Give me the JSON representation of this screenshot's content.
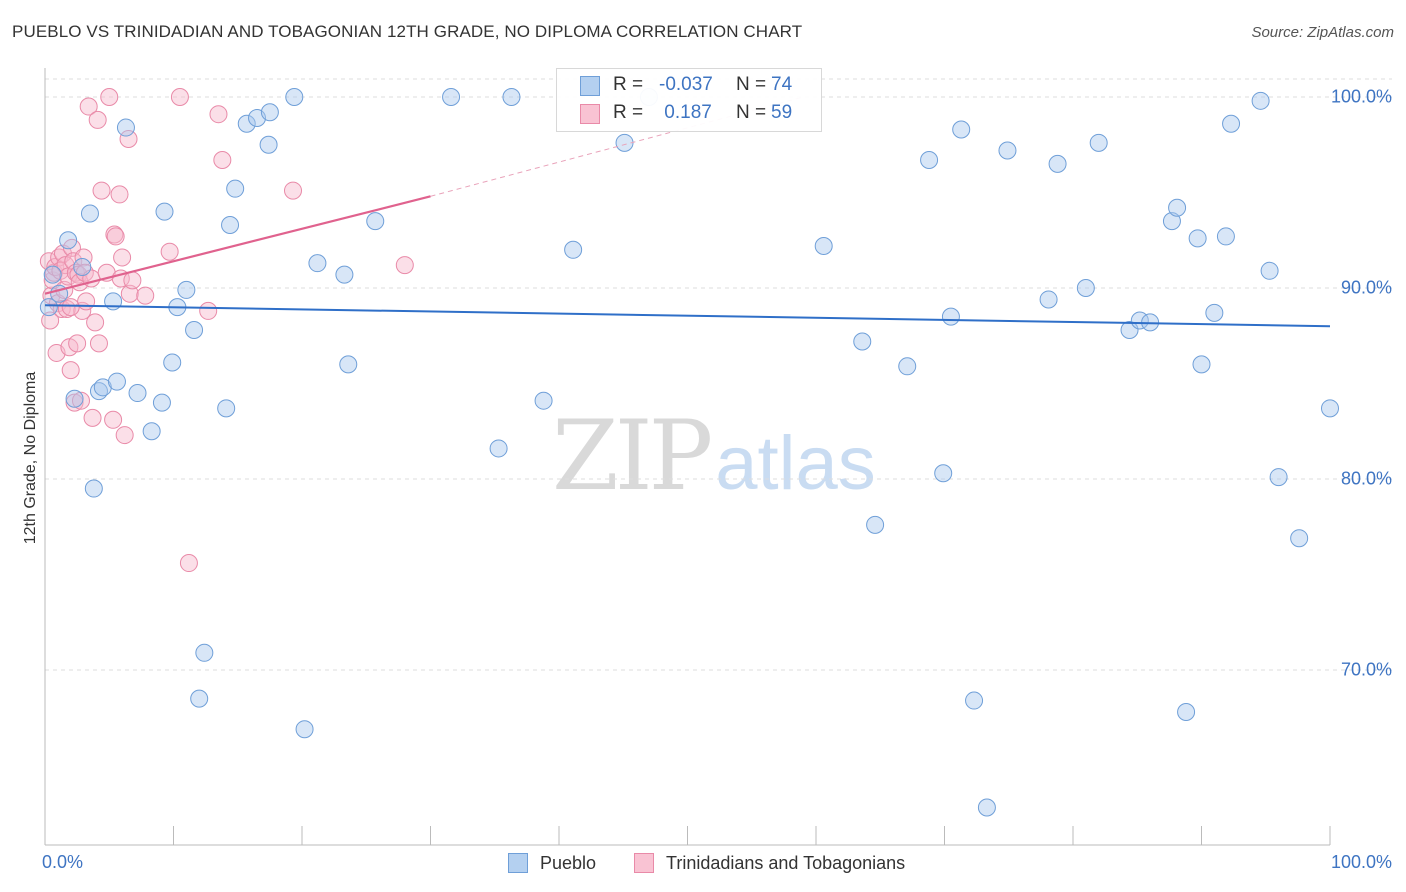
{
  "header": {
    "title": "PUEBLO VS TRINIDADIAN AND TOBAGONIAN 12TH GRADE, NO DIPLOMA CORRELATION CHART",
    "source": "Source: ZipAtlas.com"
  },
  "stats": {
    "pueblo": {
      "r_label": "R =",
      "r_value": "-0.037",
      "n_label": "N =",
      "n_value": "74"
    },
    "trinidad": {
      "r_label": "R =",
      "r_value": " 0.187",
      "n_label": "N =",
      "n_value": "59"
    }
  },
  "legend": {
    "pueblo_label": "Pueblo",
    "trinidad_label": "Trinidadians and Tobagonians"
  },
  "watermark": {
    "zip": "ZIP",
    "atlas": "atlas"
  },
  "colors": {
    "blue_fill": "#a8c8ee",
    "blue_stroke": "#6f9fd8",
    "blue_line": "#2f6fc8",
    "pink_fill": "#f7b9cc",
    "pink_stroke": "#e98aa8",
    "pink_line": "#e0628e",
    "grid": "#dddddd",
    "accent_text": "#3e74c2"
  },
  "chart_data": {
    "type": "scatter",
    "title": "PUEBLO VS TRINIDADIAN AND TOBAGONIAN 12TH GRADE, NO DIPLOMA CORRELATION CHART",
    "xlabel": "",
    "ylabel": "12th Grade, No Diploma",
    "xlim": [
      0,
      100
    ],
    "ylim": [
      60,
      102
    ],
    "x_tick_labels": [
      "0.0%",
      "100.0%"
    ],
    "y_ticks": [
      70,
      80,
      90,
      100
    ],
    "y_tick_labels": [
      "70.0%",
      "80.0%",
      "90.0%",
      "100.0%"
    ],
    "grid": true,
    "legend_position": "bottom",
    "series": [
      {
        "name": "Pueblo",
        "color": "#a8c8ee",
        "r": -0.037,
        "n": 74,
        "trend": {
          "x": [
            0,
            100
          ],
          "y": [
            89.1,
            88.0
          ]
        },
        "points": [
          [
            0.3,
            89.0
          ],
          [
            0.6,
            90.7
          ],
          [
            1.1,
            89.7
          ],
          [
            1.8,
            92.5
          ],
          [
            2.3,
            84.2
          ],
          [
            2.9,
            91.1
          ],
          [
            3.5,
            93.9
          ],
          [
            3.8,
            79.5
          ],
          [
            4.2,
            84.6
          ],
          [
            4.5,
            84.8
          ],
          [
            5.3,
            89.3
          ],
          [
            5.6,
            85.1
          ],
          [
            6.3,
            98.4
          ],
          [
            7.2,
            84.5
          ],
          [
            8.3,
            82.5
          ],
          [
            9.1,
            84.0
          ],
          [
            9.3,
            94.0
          ],
          [
            9.9,
            86.1
          ],
          [
            10.3,
            89.0
          ],
          [
            11.0,
            89.9
          ],
          [
            11.6,
            87.8
          ],
          [
            12.4,
            70.9
          ],
          [
            12.0,
            68.5
          ],
          [
            14.1,
            83.7
          ],
          [
            14.4,
            93.3
          ],
          [
            14.8,
            95.2
          ],
          [
            15.7,
            98.6
          ],
          [
            16.5,
            98.9
          ],
          [
            17.4,
            97.5
          ],
          [
            17.5,
            99.2
          ],
          [
            19.4,
            100.0
          ],
          [
            20.2,
            66.9
          ],
          [
            21.2,
            91.3
          ],
          [
            23.3,
            90.7
          ],
          [
            23.6,
            86.0
          ],
          [
            25.7,
            93.5
          ],
          [
            31.6,
            100.0
          ],
          [
            35.3,
            81.6
          ],
          [
            36.3,
            100.0
          ],
          [
            38.8,
            84.1
          ],
          [
            41.1,
            92.0
          ],
          [
            45.1,
            97.6
          ],
          [
            47.0,
            100.0
          ],
          [
            60.6,
            92.2
          ],
          [
            63.6,
            87.2
          ],
          [
            64.6,
            77.6
          ],
          [
            67.1,
            85.9
          ],
          [
            68.8,
            96.7
          ],
          [
            69.9,
            80.3
          ],
          [
            73.3,
            62.8
          ],
          [
            70.5,
            88.5
          ],
          [
            71.3,
            98.3
          ],
          [
            72.3,
            68.4
          ],
          [
            74.9,
            97.2
          ],
          [
            78.1,
            89.4
          ],
          [
            78.8,
            96.5
          ],
          [
            81.0,
            90.0
          ],
          [
            82.0,
            97.6
          ],
          [
            84.4,
            87.8
          ],
          [
            85.2,
            88.3
          ],
          [
            86.0,
            88.2
          ],
          [
            87.7,
            93.5
          ],
          [
            88.1,
            94.2
          ],
          [
            88.8,
            67.8
          ],
          [
            89.7,
            92.6
          ],
          [
            90.0,
            86.0
          ],
          [
            91.0,
            88.7
          ],
          [
            91.9,
            92.7
          ],
          [
            92.3,
            98.6
          ],
          [
            94.6,
            99.8
          ],
          [
            95.3,
            90.9
          ],
          [
            96.0,
            80.1
          ],
          [
            97.6,
            76.9
          ],
          [
            100.0,
            83.7
          ]
        ]
      },
      {
        "name": "Trinidadians and Tobagonians",
        "color": "#f7b9cc",
        "r": 0.187,
        "n": 59,
        "trend": {
          "x": [
            0,
            30
          ],
          "y": [
            89.7,
            94.8
          ]
        },
        "trend_dashed": {
          "x": [
            30,
            59
          ],
          "y": [
            94.8,
            100.0
          ]
        },
        "points": [
          [
            0.3,
            91.4
          ],
          [
            0.4,
            88.3
          ],
          [
            0.5,
            89.6
          ],
          [
            0.6,
            90.4
          ],
          [
            0.7,
            90.8
          ],
          [
            0.8,
            91.1
          ],
          [
            0.9,
            86.6
          ],
          [
            1.0,
            89.2
          ],
          [
            1.1,
            91.6
          ],
          [
            1.2,
            90.9
          ],
          [
            1.3,
            88.9
          ],
          [
            1.4,
            91.8
          ],
          [
            1.5,
            89.9
          ],
          [
            1.6,
            91.2
          ],
          [
            1.7,
            88.9
          ],
          [
            1.8,
            90.6
          ],
          [
            1.9,
            86.9
          ],
          [
            2.0,
            85.7
          ],
          [
            2.1,
            92.1
          ],
          [
            2.2,
            91.4
          ],
          [
            2.3,
            84.0
          ],
          [
            2.4,
            90.8
          ],
          [
            2.5,
            87.1
          ],
          [
            2.6,
            90.7
          ],
          [
            2.7,
            90.3
          ],
          [
            2.8,
            84.1
          ],
          [
            2.9,
            88.8
          ],
          [
            3.0,
            91.6
          ],
          [
            3.1,
            90.8
          ],
          [
            3.2,
            89.3
          ],
          [
            3.4,
            99.5
          ],
          [
            3.6,
            90.5
          ],
          [
            3.7,
            83.2
          ],
          [
            3.9,
            88.2
          ],
          [
            4.1,
            98.8
          ],
          [
            4.2,
            87.1
          ],
          [
            4.4,
            95.1
          ],
          [
            4.8,
            90.8
          ],
          [
            5.0,
            100.0
          ],
          [
            5.3,
            83.1
          ],
          [
            5.4,
            92.8
          ],
          [
            5.5,
            92.7
          ],
          [
            5.8,
            94.9
          ],
          [
            5.9,
            90.5
          ],
          [
            6.0,
            91.6
          ],
          [
            6.2,
            82.3
          ],
          [
            6.5,
            97.8
          ],
          [
            6.6,
            89.7
          ],
          [
            6.8,
            90.4
          ],
          [
            7.8,
            89.6
          ],
          [
            9.7,
            91.9
          ],
          [
            10.5,
            100.0
          ],
          [
            11.2,
            75.6
          ],
          [
            12.7,
            88.8
          ],
          [
            13.5,
            99.1
          ],
          [
            13.8,
            96.7
          ],
          [
            19.3,
            95.1
          ],
          [
            28.0,
            91.2
          ],
          [
            2.0,
            89.0
          ]
        ]
      }
    ]
  }
}
